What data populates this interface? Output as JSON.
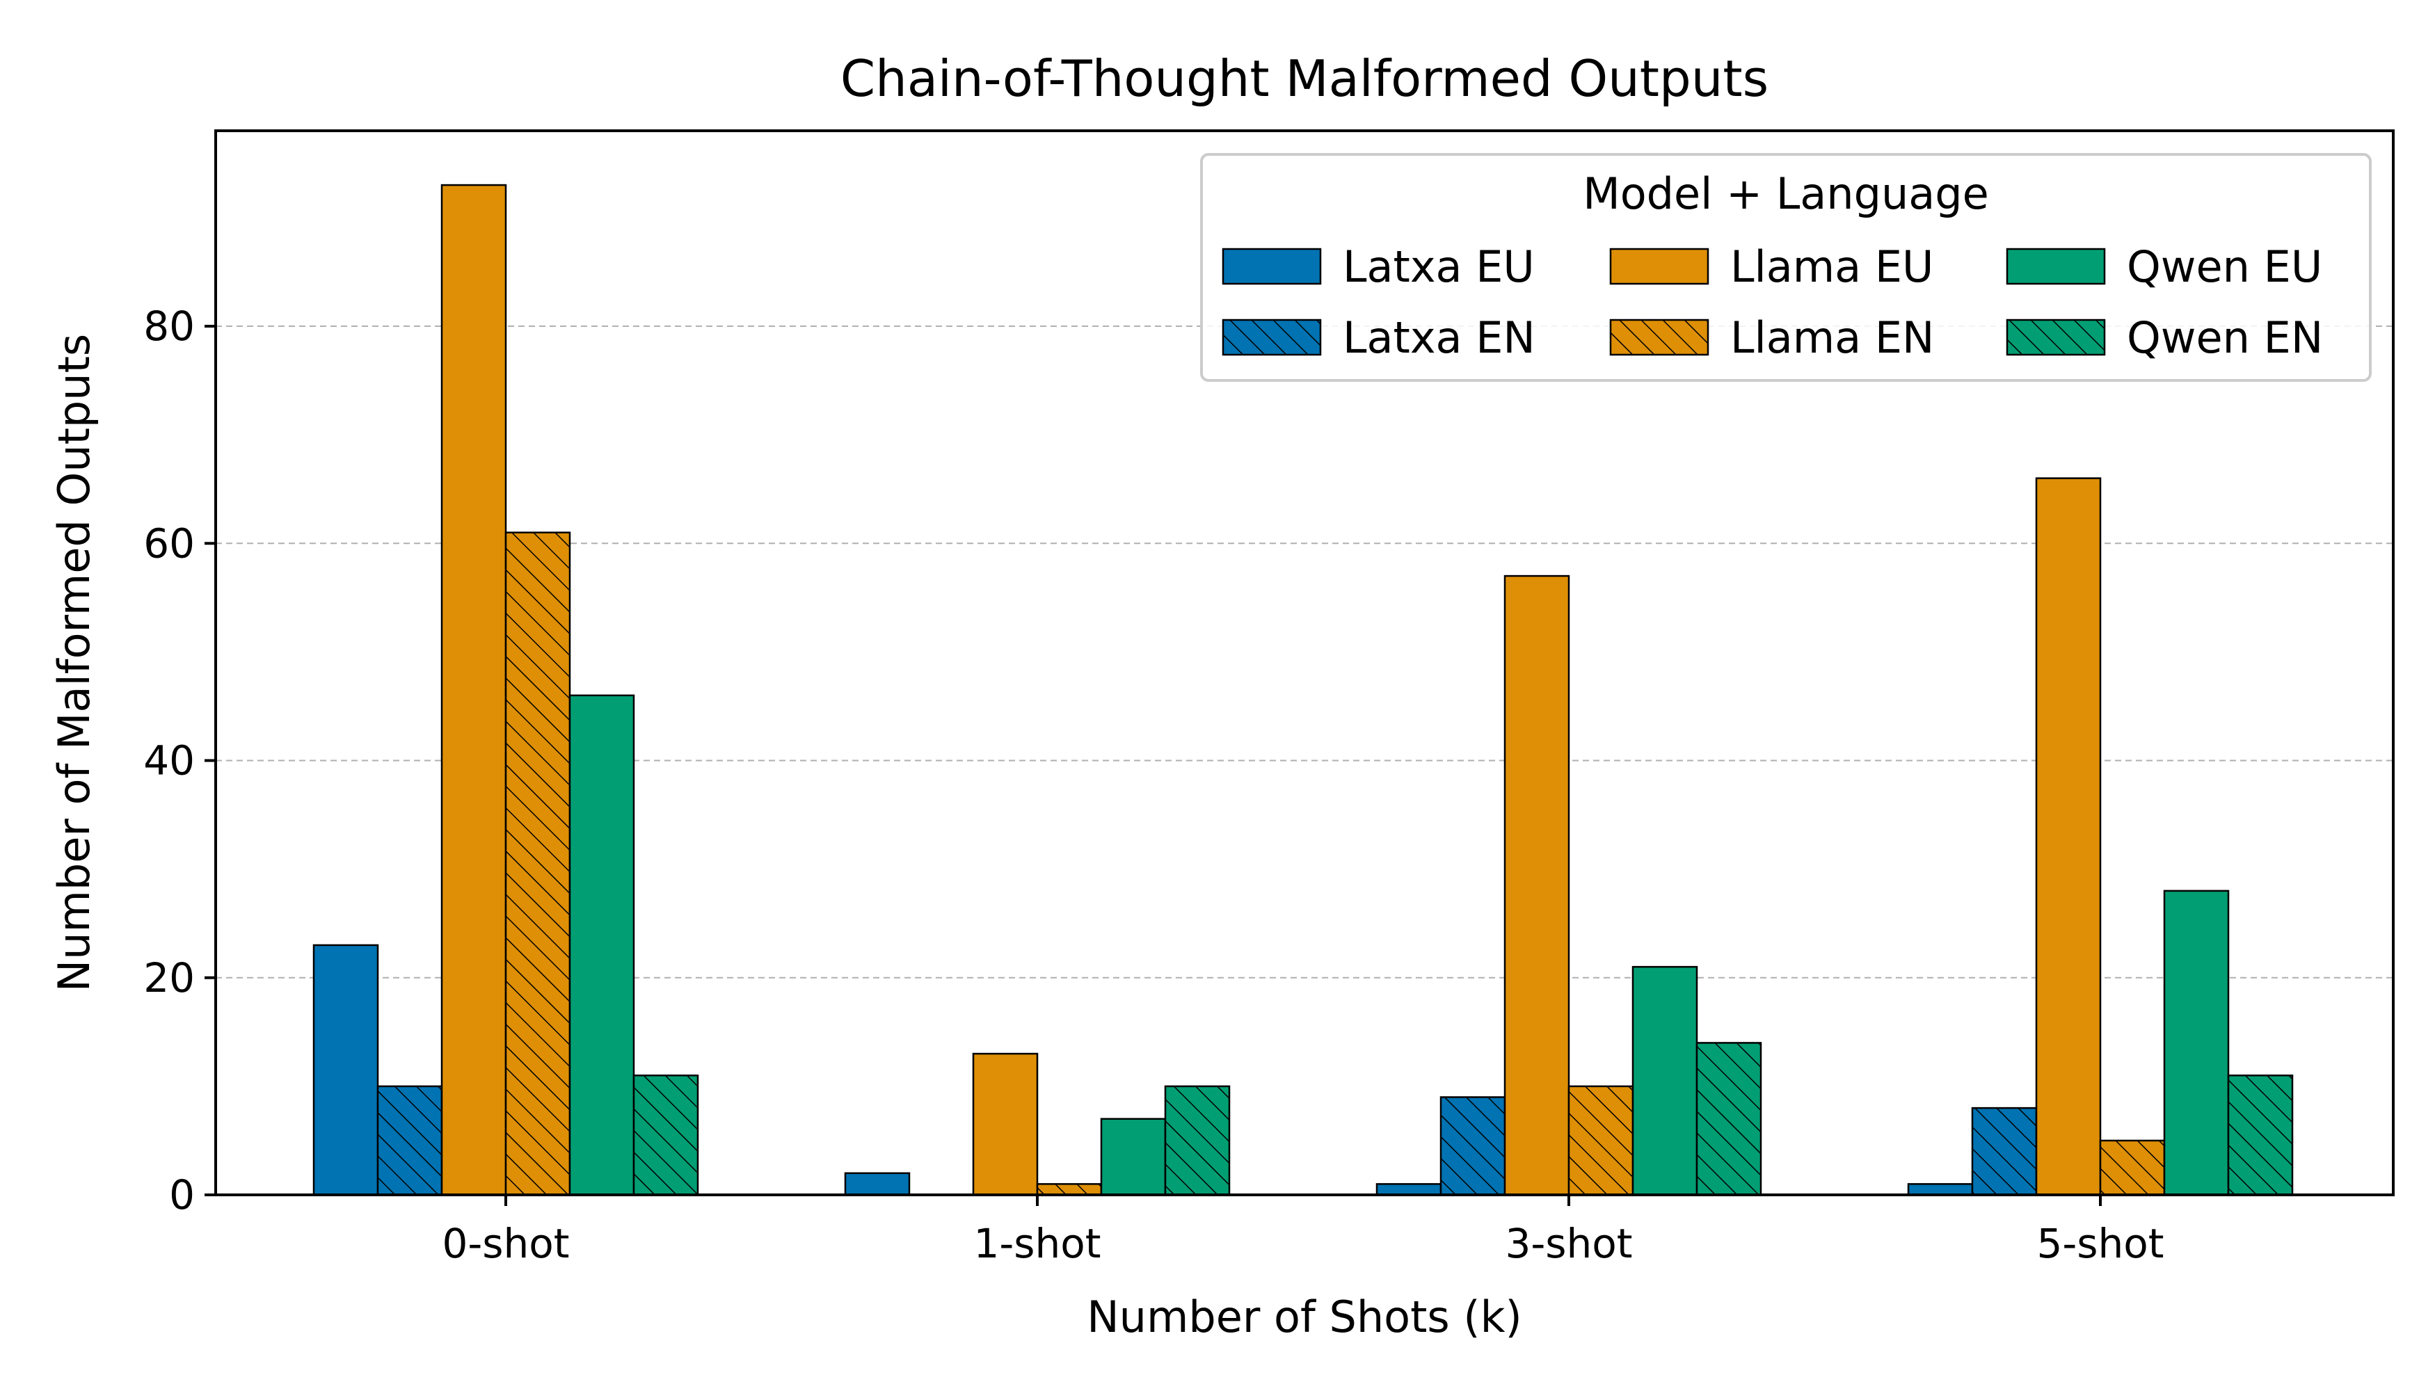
{
  "chart_data": {
    "type": "bar",
    "title": "Chain-of-Thought Malformed Outputs",
    "xlabel": "Number of Shots (k)",
    "ylabel": "Number of Malformed Outputs",
    "categories": [
      "0-shot",
      "1-shot",
      "3-shot",
      "5-shot"
    ],
    "ylim": [
      0,
      98
    ],
    "yticks": [
      0,
      20,
      40,
      60,
      80
    ],
    "grid": "y-dashed",
    "legend": {
      "title": "Model + Language",
      "placement": "top-right",
      "columns": 3
    },
    "series": [
      {
        "name": "Latxa EU",
        "color": "#0173b2",
        "hatch": false,
        "values": [
          23,
          2,
          1,
          1
        ]
      },
      {
        "name": "Latxa EN",
        "color": "#0173b2",
        "hatch": true,
        "values": [
          10,
          0,
          9,
          8
        ]
      },
      {
        "name": "Llama EU",
        "color": "#de8f05",
        "hatch": false,
        "values": [
          93,
          13,
          57,
          66
        ]
      },
      {
        "name": "Llama EN",
        "color": "#de8f05",
        "hatch": true,
        "values": [
          61,
          1,
          10,
          5
        ]
      },
      {
        "name": "Qwen EU",
        "color": "#029e73",
        "hatch": false,
        "values": [
          46,
          7,
          21,
          28
        ]
      },
      {
        "name": "Qwen EN",
        "color": "#029e73",
        "hatch": true,
        "values": [
          11,
          10,
          14,
          11
        ]
      }
    ]
  }
}
